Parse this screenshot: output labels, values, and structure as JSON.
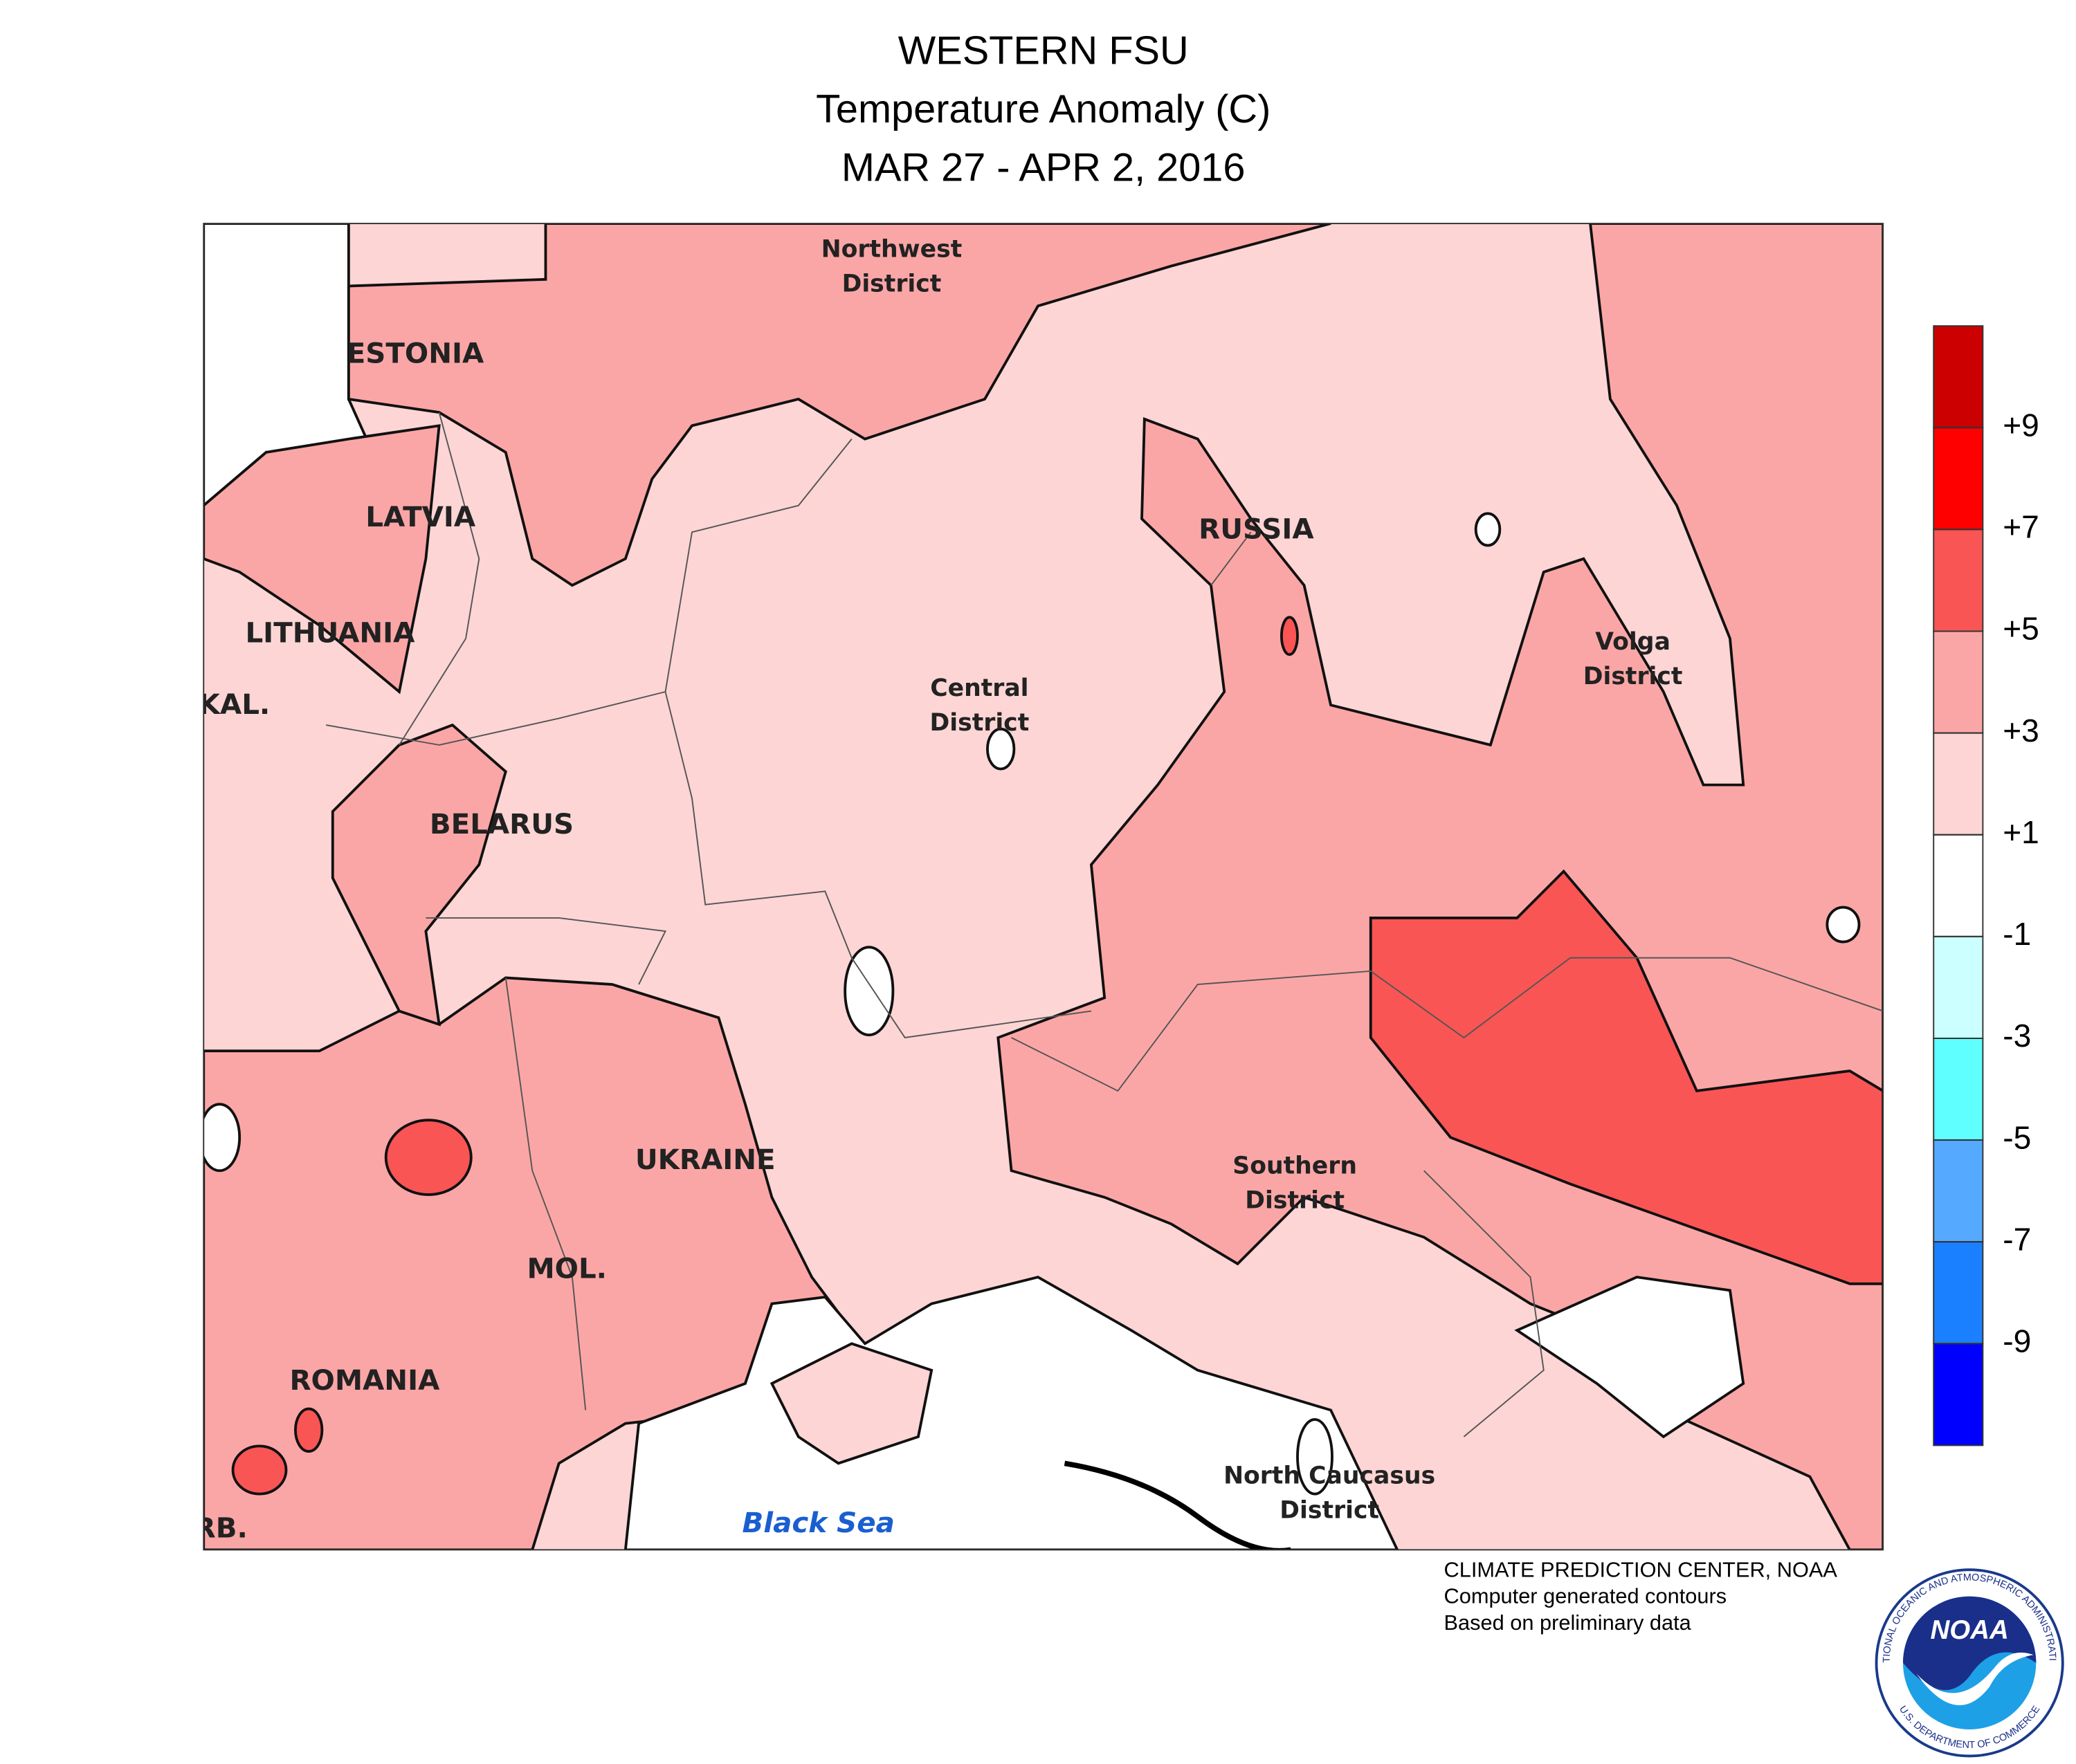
{
  "header": {
    "title": "WESTERN FSU",
    "subtitle": "Temperature Anomaly (C)",
    "period": "MAR 27 - APR 2, 2016"
  },
  "map": {
    "labels": [
      {
        "lines": [
          "Northwest",
          "District"
        ]
      },
      {
        "lines": [
          "ESTONIA"
        ]
      },
      {
        "lines": [
          "LATVIA"
        ]
      },
      {
        "lines": [
          "LITHUANIA"
        ]
      },
      {
        "lines": [
          "KAL."
        ]
      },
      {
        "lines": [
          "BELARUS"
        ]
      },
      {
        "lines": [
          "RUSSIA"
        ]
      },
      {
        "lines": [
          "Central",
          "District"
        ]
      },
      {
        "lines": [
          "Volga",
          "District"
        ]
      },
      {
        "lines": [
          "UKRAINE"
        ]
      },
      {
        "lines": [
          "MOL."
        ]
      },
      {
        "lines": [
          "ROMANIA"
        ]
      },
      {
        "lines": [
          "Southern",
          "District"
        ]
      },
      {
        "lines": [
          "North Caucasus",
          "District"
        ]
      },
      {
        "lines": [
          "RB."
        ]
      },
      {
        "lines": [
          "Black Sea"
        ]
      }
    ]
  },
  "legend": {
    "colors": [
      "#cc0000",
      "#ff0000",
      "#f95555",
      "#fba6a6",
      "#fdd5d5",
      "#ffffff",
      "#ccffff",
      "#5fffff",
      "#55aaff",
      "#1a80ff",
      "#0000ff"
    ],
    "ticks": [
      {
        "value": 9,
        "label": "+9"
      },
      {
        "value": 7,
        "label": "+7"
      },
      {
        "value": 5,
        "label": "+5"
      },
      {
        "value": 3,
        "label": "+3"
      },
      {
        "value": 1,
        "label": "+1"
      },
      -1,
      -3,
      -5,
      -7,
      -9
    ]
  },
  "credits": {
    "lines": [
      "CLIMATE PREDICTION CENTER, NOAA",
      "Computer generated contours",
      "Based on preliminary data"
    ]
  },
  "logo": {
    "name": "NOAA",
    "ring_top": "NATIONAL OCEANIC AND ATMOSPHERIC ADMINISTRATION",
    "ring_bottom": "U.S. DEPARTMENT OF COMMERCE"
  }
}
